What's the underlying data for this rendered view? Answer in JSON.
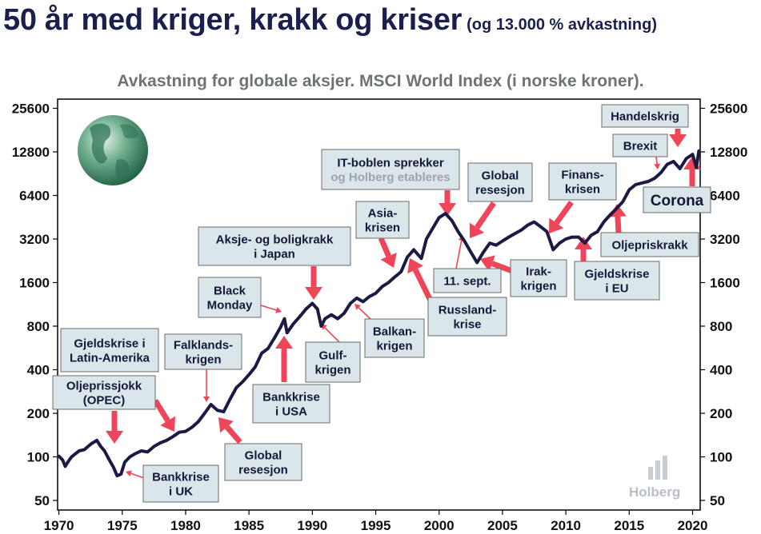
{
  "header": {
    "title": "50 år med kriger, krakk og kriser",
    "subtitle": "(og 13.000 % avkastning)"
  },
  "chart_data": {
    "type": "line",
    "title": "Avkastning for globale aksjer. MSCI World Index (i norske kroner).",
    "xlabel": "",
    "ylabel": "",
    "y_scale": "log2",
    "ylim": [
      45,
      30000
    ],
    "xlim": [
      1969.9,
      2020.6
    ],
    "y_ticks": [
      "50",
      "100",
      "200",
      "400",
      "800",
      "1600",
      "3200",
      "6400",
      "12800",
      "25600"
    ],
    "x_ticks": [
      "1970",
      "1975",
      "1980",
      "1985",
      "1990",
      "1995",
      "2000",
      "2005",
      "2010",
      "2015",
      "2020"
    ],
    "grid": false,
    "line_color": "#1c1a45",
    "series": [
      {
        "name": "",
        "x": [
          1970.0,
          1970.3,
          1970.5,
          1970.7,
          1971.0,
          1971.3,
          1971.6,
          1972.0,
          1972.3,
          1972.6,
          1973.0,
          1973.3,
          1973.6,
          1973.9,
          1974.3,
          1974.6,
          1974.9,
          1975.2,
          1975.6,
          1976.0,
          1976.5,
          1977.0,
          1977.5,
          1978.0,
          1978.5,
          1979.0,
          1979.5,
          1980.0,
          1980.5,
          1981.0,
          1981.5,
          1982.0,
          1982.5,
          1983.0,
          1983.5,
          1984.0,
          1984.5,
          1985.0,
          1985.5,
          1986.0,
          1986.5,
          1987.0,
          1987.5,
          1987.8,
          1988.0,
          1988.5,
          1989.0,
          1989.5,
          1990.0,
          1990.4,
          1990.7,
          1991.0,
          1991.5,
          1992.0,
          1992.5,
          1993.0,
          1993.5,
          1994.0,
          1994.5,
          1995.0,
          1995.5,
          1996.0,
          1996.5,
          1997.0,
          1997.5,
          1998.0,
          1998.6,
          1999.0,
          1999.5,
          2000.0,
          2000.5,
          2001.0,
          2001.5,
          2002.0,
          2002.5,
          2003.0,
          2003.5,
          2004.0,
          2004.5,
          2005.0,
          2005.5,
          2006.0,
          2006.5,
          2007.0,
          2007.5,
          2008.0,
          2008.5,
          2009.0,
          2009.5,
          2010.0,
          2010.5,
          2011.0,
          2011.5,
          2012.0,
          2012.5,
          2013.0,
          2013.5,
          2014.0,
          2014.5,
          2015.0,
          2015.5,
          2016.0,
          2016.5,
          2017.0,
          2017.5,
          2018.0,
          2018.5,
          2019.0,
          2019.5,
          2020.0,
          2020.3,
          2020.5
        ],
        "y": [
          101,
          95,
          86,
          92,
          100,
          105,
          110,
          112,
          118,
          124,
          130,
          118,
          110,
          98,
          85,
          74,
          76,
          92,
          100,
          105,
          110,
          108,
          118,
          125,
          130,
          138,
          148,
          150,
          160,
          175,
          200,
          230,
          210,
          205,
          250,
          300,
          330,
          370,
          420,
          520,
          560,
          660,
          790,
          900,
          720,
          830,
          930,
          1050,
          1150,
          1050,
          800,
          900,
          960,
          900,
          980,
          1150,
          1250,
          1180,
          1280,
          1350,
          1500,
          1600,
          1750,
          1900,
          2400,
          2700,
          2350,
          3200,
          3800,
          4500,
          4800,
          4300,
          3600,
          3100,
          2600,
          2200,
          2600,
          3000,
          2900,
          3100,
          3300,
          3500,
          3700,
          4000,
          4200,
          3900,
          3600,
          2700,
          3000,
          3200,
          3300,
          3300,
          3000,
          3400,
          3600,
          4200,
          4700,
          5200,
          5800,
          7000,
          7600,
          7800,
          8000,
          8400,
          9200,
          10500,
          11000,
          9800,
          11500,
          12300,
          10000,
          13000
        ]
      }
    ],
    "annotations": [
      {
        "id": "oljeprissjokk",
        "text": [
          "Oljeprissjokk",
          "(OPEC)"
        ]
      },
      {
        "id": "gjeldskrise-latin",
        "text": [
          "Gjeldskrise i",
          "Latin-Amerika"
        ]
      },
      {
        "id": "falklands",
        "text": [
          "Falklands-",
          "krigen"
        ]
      },
      {
        "id": "bankkrise-uk",
        "text": [
          "Bankkrise",
          "i UK"
        ]
      },
      {
        "id": "global-resesjon-1",
        "text": [
          "Global",
          "resesjon"
        ]
      },
      {
        "id": "black-monday",
        "text": [
          "Black",
          "Monday"
        ]
      },
      {
        "id": "bankkrise-usa",
        "text": [
          "Bankkrise",
          "i USA"
        ]
      },
      {
        "id": "aksje-bolig",
        "text": [
          "Aksje- og boligkrakk",
          "i Japan"
        ]
      },
      {
        "id": "gulfkrigen",
        "text": [
          "Gulf-",
          "krigen"
        ]
      },
      {
        "id": "balkankrigen",
        "text": [
          "Balkan-",
          "krigen"
        ]
      },
      {
        "id": "asiakrisen",
        "text": [
          "Asia-",
          "krisen"
        ]
      },
      {
        "id": "russlandkrise",
        "text": [
          "Russland-",
          "krise"
        ]
      },
      {
        "id": "it-boblen",
        "text": [
          "IT-boblen sprekker",
          "og Holberg etableres"
        ]
      },
      {
        "id": "global-resesjon-2",
        "text": [
          "Global",
          "resesjon"
        ]
      },
      {
        "id": "sept11",
        "text": [
          "11. sept."
        ]
      },
      {
        "id": "irakkrigen",
        "text": [
          "Irak-",
          "krigen"
        ]
      },
      {
        "id": "finanskrisen",
        "text": [
          "Finans-",
          "krisen"
        ]
      },
      {
        "id": "gjeldskrise-eu",
        "text": [
          "Gjeldskrise",
          "i EU"
        ]
      },
      {
        "id": "oljepriskrakk",
        "text": [
          "Oljepriskrakk"
        ]
      },
      {
        "id": "handelskrig",
        "text": [
          "Handelskrig"
        ]
      },
      {
        "id": "brexit",
        "text": [
          "Brexit"
        ]
      },
      {
        "id": "corona",
        "text": [
          "Corona"
        ]
      }
    ]
  },
  "logo": {
    "text": "Holberg"
  }
}
